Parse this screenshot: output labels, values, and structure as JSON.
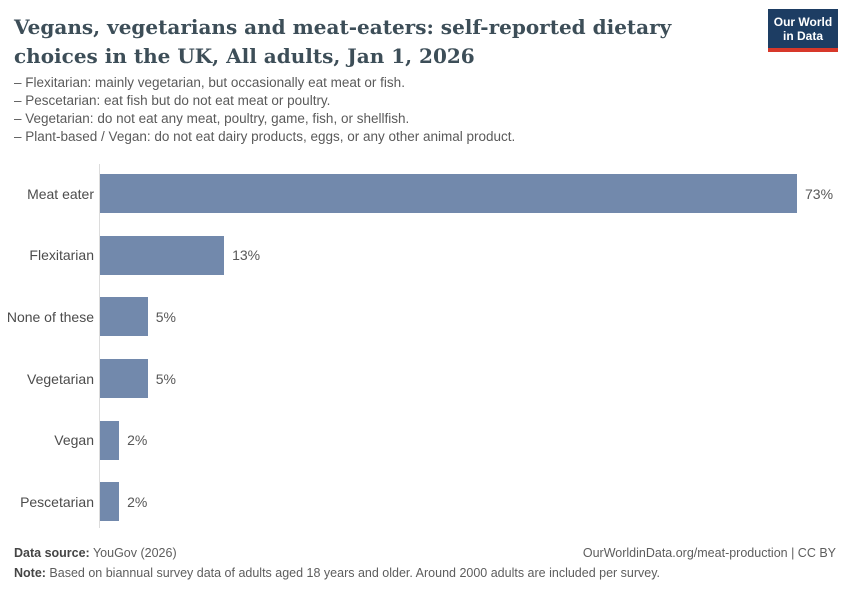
{
  "header": {
    "title": "Vegans, vegetarians and meat-eaters: self-reported dietary choices in the UK, All adults, Jan 1, 2026",
    "subtitle_lines": [
      "– Flexitarian: mainly vegetarian, but occasionally eat meat or fish.",
      "– Pescetarian: eat fish but do not eat meat or poultry.",
      "– Vegetarian: do not eat any meat, poultry, game, fish, or shellfish.",
      "– Plant-based / Vegan: do not eat dairy products, eggs, or any other animal product."
    ],
    "logo": {
      "line1": "Our World",
      "line2": "in Data",
      "bg_color": "#1d3d63",
      "accent_color": "#d7382a"
    }
  },
  "chart_data": {
    "type": "bar",
    "orientation": "horizontal",
    "title": "Vegans, vegetarians and meat-eaters: self-reported dietary choices in the UK, All adults, Jan 1, 2026",
    "categories": [
      "Meat eater",
      "Flexitarian",
      "None of these",
      "Vegetarian",
      "Vegan",
      "Pescetarian"
    ],
    "values": [
      73,
      13,
      5,
      5,
      2,
      2
    ],
    "value_labels": [
      "73%",
      "13%",
      "5%",
      "5%",
      "2%",
      "2%"
    ],
    "unit": "%",
    "xlim": [
      0,
      73
    ],
    "bar_color": "#7289ac",
    "grid": false,
    "legend": "none"
  },
  "footer": {
    "data_source_label": "Data source:",
    "data_source_value": " YouGov (2026)",
    "attribution": "OurWorldinData.org/meat-production | CC BY",
    "note_label": "Note:",
    "note_value": " Based on biannual survey data of adults aged 18 years and older. Around 2000 adults are included per survey."
  }
}
